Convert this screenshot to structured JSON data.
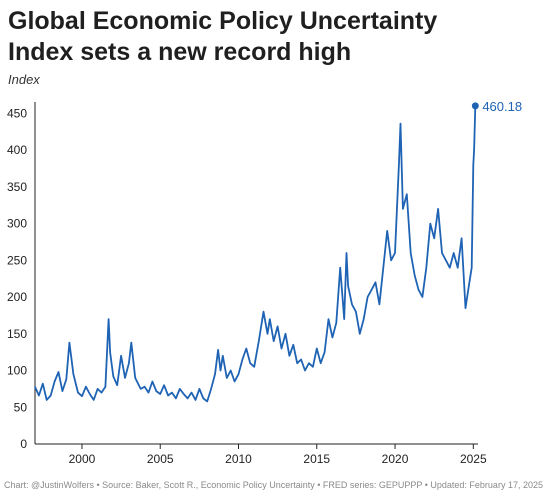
{
  "chart_data": {
    "type": "line",
    "title": "Global Economic Policy Uncertainty Index sets a new record high",
    "subtitle": "Index",
    "xlabel": "",
    "ylabel": "",
    "xlim": [
      1997,
      2025.3
    ],
    "ylim": [
      0,
      460
    ],
    "y_ticks": [
      0,
      50,
      100,
      150,
      200,
      250,
      300,
      350,
      400,
      450
    ],
    "x_ticks": [
      2000,
      2005,
      2010,
      2015,
      2020,
      2025
    ],
    "grid": false,
    "line_color": "#1f63b4",
    "end_label": "460.18",
    "series": [
      {
        "name": "",
        "points": [
          [
            1997.0,
            78
          ],
          [
            1997.25,
            66
          ],
          [
            1997.5,
            82
          ],
          [
            1997.75,
            60
          ],
          [
            1998.0,
            66
          ],
          [
            1998.25,
            85
          ],
          [
            1998.5,
            98
          ],
          [
            1998.75,
            72
          ],
          [
            1999.0,
            88
          ],
          [
            1999.2,
            138
          ],
          [
            1999.45,
            95
          ],
          [
            1999.75,
            70
          ],
          [
            2000.0,
            65
          ],
          [
            2000.25,
            78
          ],
          [
            2000.5,
            68
          ],
          [
            2000.75,
            60
          ],
          [
            2001.0,
            75
          ],
          [
            2001.25,
            70
          ],
          [
            2001.5,
            78
          ],
          [
            2001.7,
            170
          ],
          [
            2001.8,
            125
          ],
          [
            2002.0,
            92
          ],
          [
            2002.25,
            80
          ],
          [
            2002.5,
            120
          ],
          [
            2002.75,
            90
          ],
          [
            2003.0,
            110
          ],
          [
            2003.15,
            138
          ],
          [
            2003.4,
            90
          ],
          [
            2003.75,
            75
          ],
          [
            2004.0,
            78
          ],
          [
            2004.25,
            70
          ],
          [
            2004.5,
            85
          ],
          [
            2004.75,
            72
          ],
          [
            2005.0,
            68
          ],
          [
            2005.25,
            80
          ],
          [
            2005.5,
            66
          ],
          [
            2005.75,
            70
          ],
          [
            2006.0,
            62
          ],
          [
            2006.25,
            75
          ],
          [
            2006.5,
            68
          ],
          [
            2006.75,
            62
          ],
          [
            2007.0,
            70
          ],
          [
            2007.25,
            60
          ],
          [
            2007.5,
            75
          ],
          [
            2007.75,
            62
          ],
          [
            2008.0,
            58
          ],
          [
            2008.25,
            75
          ],
          [
            2008.5,
            95
          ],
          [
            2008.7,
            128
          ],
          [
            2008.85,
            100
          ],
          [
            2009.0,
            120
          ],
          [
            2009.25,
            90
          ],
          [
            2009.5,
            100
          ],
          [
            2009.75,
            85
          ],
          [
            2010.0,
            95
          ],
          [
            2010.25,
            115
          ],
          [
            2010.5,
            130
          ],
          [
            2010.75,
            110
          ],
          [
            2011.0,
            105
          ],
          [
            2011.3,
            140
          ],
          [
            2011.6,
            180
          ],
          [
            2011.85,
            150
          ],
          [
            2012.0,
            170
          ],
          [
            2012.25,
            140
          ],
          [
            2012.5,
            160
          ],
          [
            2012.75,
            130
          ],
          [
            2013.0,
            150
          ],
          [
            2013.25,
            120
          ],
          [
            2013.5,
            135
          ],
          [
            2013.75,
            110
          ],
          [
            2014.0,
            115
          ],
          [
            2014.25,
            100
          ],
          [
            2014.5,
            110
          ],
          [
            2014.75,
            105
          ],
          [
            2015.0,
            130
          ],
          [
            2015.25,
            110
          ],
          [
            2015.5,
            125
          ],
          [
            2015.75,
            170
          ],
          [
            2016.0,
            145
          ],
          [
            2016.25,
            165
          ],
          [
            2016.5,
            240
          ],
          [
            2016.75,
            170
          ],
          [
            2016.9,
            260
          ],
          [
            2017.0,
            215
          ],
          [
            2017.25,
            190
          ],
          [
            2017.5,
            180
          ],
          [
            2017.75,
            150
          ],
          [
            2018.0,
            170
          ],
          [
            2018.25,
            200
          ],
          [
            2018.5,
            210
          ],
          [
            2018.75,
            220
          ],
          [
            2019.0,
            190
          ],
          [
            2019.25,
            240
          ],
          [
            2019.5,
            290
          ],
          [
            2019.75,
            250
          ],
          [
            2020.0,
            260
          ],
          [
            2020.25,
            380
          ],
          [
            2020.35,
            436
          ],
          [
            2020.5,
            320
          ],
          [
            2020.75,
            340
          ],
          [
            2021.0,
            260
          ],
          [
            2021.25,
            230
          ],
          [
            2021.5,
            210
          ],
          [
            2021.75,
            200
          ],
          [
            2022.0,
            240
          ],
          [
            2022.25,
            300
          ],
          [
            2022.5,
            280
          ],
          [
            2022.75,
            320
          ],
          [
            2023.0,
            260
          ],
          [
            2023.25,
            250
          ],
          [
            2023.5,
            240
          ],
          [
            2023.75,
            260
          ],
          [
            2024.0,
            240
          ],
          [
            2024.25,
            280
          ],
          [
            2024.5,
            185
          ],
          [
            2024.75,
            220
          ],
          [
            2024.9,
            240
          ],
          [
            2025.0,
            380
          ],
          [
            2025.05,
            400
          ],
          [
            2025.13,
            460.18
          ]
        ]
      }
    ]
  },
  "footer": {
    "source": "Chart: @JustinWolfers • Source: Baker, Scott R., Economic Policy Uncertainty • FRED series: GEPUPPP • Updated: February 17, 2025"
  }
}
